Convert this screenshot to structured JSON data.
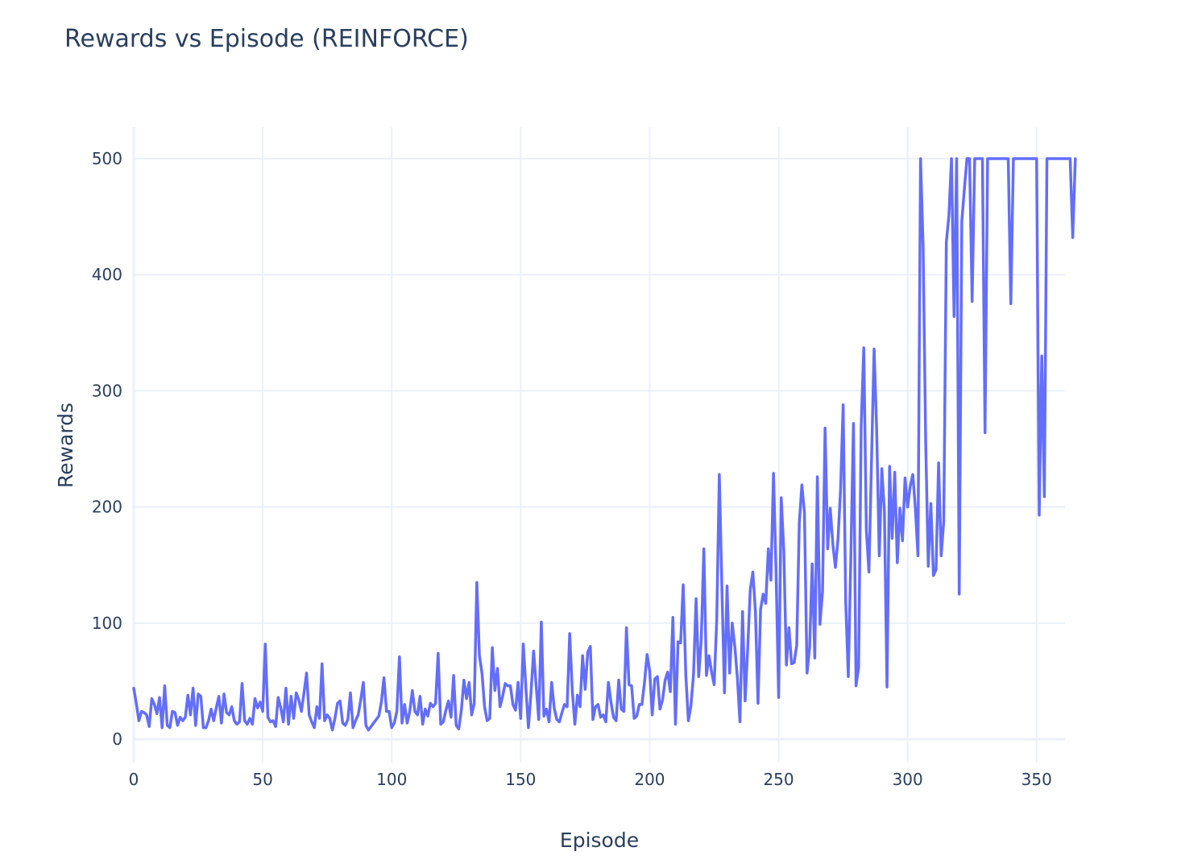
{
  "title": "Rewards vs Episode (REINFORCE)",
  "colors": {
    "series": "#636efa",
    "text": "#2a3f5f",
    "grid": "#ebf0f8",
    "background": "#ffffff"
  },
  "chart_data": {
    "type": "line",
    "title": "Rewards vs Episode (REINFORCE)",
    "xlabel": "Episode",
    "ylabel": "Rewards",
    "xlim": [
      0,
      361
    ],
    "ylim": [
      -20,
      527
    ],
    "xticks": [
      0,
      50,
      100,
      150,
      200,
      250,
      300,
      350
    ],
    "yticks": [
      0,
      100,
      200,
      300,
      400,
      500
    ],
    "grid": true,
    "legend": "none",
    "series": [
      {
        "values": [
          44,
          31,
          16,
          24,
          23,
          21,
          11,
          35,
          30,
          22,
          36,
          10,
          46,
          12,
          10,
          24,
          23,
          12,
          19,
          16,
          19,
          38,
          21,
          44,
          12,
          39,
          37,
          10,
          10,
          16,
          26,
          16,
          27,
          37,
          14,
          39,
          23,
          21,
          28,
          16,
          13,
          15,
          48,
          16,
          13,
          18,
          13,
          35,
          27,
          32,
          24,
          82,
          19,
          15,
          16,
          11,
          36,
          27,
          15,
          44,
          13,
          37,
          18,
          40,
          34,
          24,
          40,
          57,
          21,
          15,
          10,
          28,
          18,
          65,
          16,
          21,
          18,
          8,
          18,
          31,
          33,
          14,
          12,
          17,
          40,
          10,
          16,
          21,
          34,
          49,
          12,
          8,
          11,
          14,
          17,
          20,
          32,
          53,
          24,
          24,
          10,
          14,
          24,
          71,
          14,
          30,
          14,
          24,
          42,
          24,
          21,
          37,
          13,
          26,
          20,
          31,
          28,
          31,
          74,
          13,
          15,
          25,
          33,
          19,
          55,
          12,
          9,
          25,
          51,
          35,
          49,
          21,
          31,
          135,
          72,
          57,
          28,
          16,
          18,
          79,
          42,
          61,
          28,
          37,
          48,
          46,
          46,
          30,
          25,
          49,
          18,
          82,
          45,
          10,
          40,
          76,
          46,
          17,
          101,
          20,
          26,
          15,
          49,
          27,
          17,
          15,
          23,
          30,
          28,
          91,
          42,
          13,
          38,
          28,
          72,
          43,
          75,
          80,
          17,
          28,
          30,
          19,
          21,
          15,
          49,
          32,
          19,
          16,
          51,
          26,
          24,
          96,
          47,
          46,
          18,
          20,
          30,
          30,
          49,
          73,
          59,
          21,
          52,
          54,
          26,
          34,
          51,
          58,
          41,
          105,
          13,
          84,
          83,
          133,
          56,
          16,
          29,
          56,
          121,
          54,
          86,
          164,
          55,
          72,
          58,
          47,
          103,
          228,
          130,
          40,
          132,
          57,
          100,
          80,
          53,
          15,
          110,
          33,
          78,
          129,
          144,
          110,
          31,
          112,
          125,
          117,
          164,
          137,
          229,
          144,
          36,
          208,
          162,
          64,
          96,
          65,
          66,
          81,
          186,
          219,
          195,
          57,
          79,
          151,
          70,
          226,
          99,
          127,
          268,
          164,
          199,
          168,
          148,
          172,
          215,
          288,
          118,
          54,
          159,
          272,
          46,
          62,
          270,
          337,
          180,
          144,
          240,
          336,
          266,
          158,
          233,
          196,
          45,
          235,
          173,
          230,
          152,
          199,
          171,
          225,
          200,
          218,
          228,
          199,
          158,
          500,
          424,
          256,
          149,
          203,
          141,
          146,
          238,
          158,
          188,
          428,
          451,
          500,
          364,
          500,
          125,
          446,
          474,
          500,
          500,
          377,
          500,
          500,
          500,
          500,
          264,
          500,
          500,
          500,
          500,
          500,
          500,
          500,
          500,
          500,
          375,
          500,
          500,
          500,
          500,
          500,
          500,
          500,
          500,
          500,
          500,
          193,
          330,
          209,
          500,
          500,
          500,
          500,
          500,
          500,
          500,
          500,
          500,
          500,
          432,
          500
        ]
      }
    ]
  }
}
